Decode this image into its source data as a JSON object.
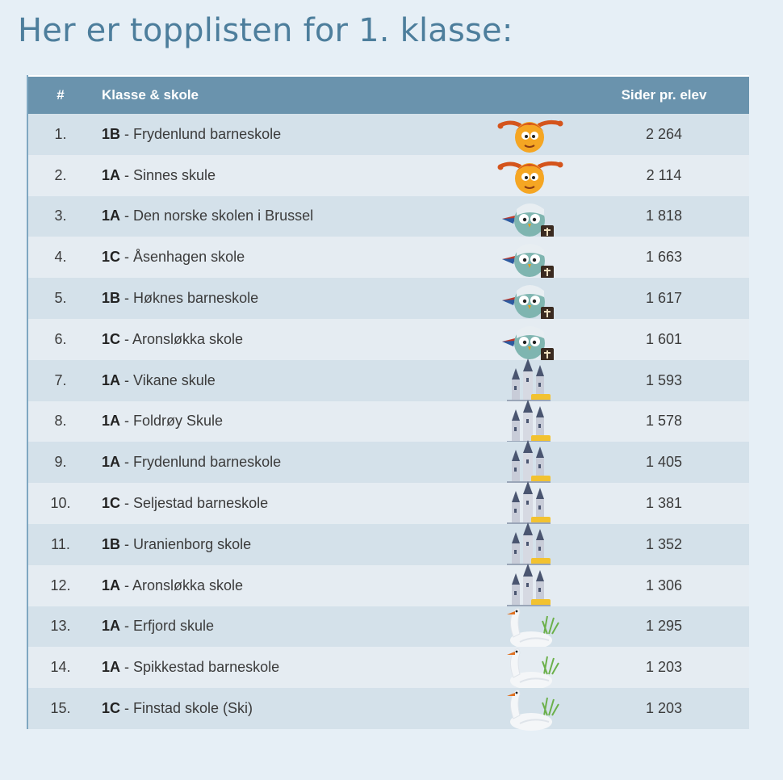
{
  "heading": "Her er topplisten for 1. klasse:",
  "table": {
    "headers": {
      "rank": "#",
      "class_school": "Klasse & skole",
      "pages": "Sider pr. elev"
    },
    "rows": [
      {
        "rank": "1.",
        "class": "1B",
        "school": " - Frydenlund barneskole",
        "badge": "pippi-badge-icon",
        "pages": "2 264"
      },
      {
        "rank": "2.",
        "class": "1A",
        "school": " - Sinnes skule",
        "badge": "pippi-badge-icon",
        "pages": "2 114"
      },
      {
        "rank": "3.",
        "class": "1A",
        "school": " - Den norske skolen i Brussel",
        "badge": "owl-judge-badge-icon",
        "pages": "1 818"
      },
      {
        "rank": "4.",
        "class": "1C",
        "school": " - Åsenhagen skole",
        "badge": "owl-judge-badge-icon",
        "pages": "1 663"
      },
      {
        "rank": "5.",
        "class": "1B",
        "school": " - Høknes barneskole",
        "badge": "owl-judge-badge-icon",
        "pages": "1 617"
      },
      {
        "rank": "6.",
        "class": "1C",
        "school": " - Aronsløkka skole",
        "badge": "owl-judge-badge-icon",
        "pages": "1 601"
      },
      {
        "rank": "7.",
        "class": "1A",
        "school": " - Vikane skule",
        "badge": "castle-badge-icon",
        "pages": "1 593"
      },
      {
        "rank": "8.",
        "class": "1A",
        "school": " - Foldrøy Skule",
        "badge": "castle-badge-icon",
        "pages": "1 578"
      },
      {
        "rank": "9.",
        "class": "1A",
        "school": " - Frydenlund barneskole",
        "badge": "castle-badge-icon",
        "pages": "1 405"
      },
      {
        "rank": "10.",
        "class": "1C",
        "school": " - Seljestad barneskole",
        "badge": "castle-badge-icon",
        "pages": "1 381"
      },
      {
        "rank": "11.",
        "class": "1B",
        "school": " - Uranienborg skole",
        "badge": "castle-badge-icon",
        "pages": "1 352"
      },
      {
        "rank": "12.",
        "class": "1A",
        "school": " - Aronsløkka skole",
        "badge": "castle-badge-icon",
        "pages": "1 306"
      },
      {
        "rank": "13.",
        "class": "1A",
        "school": " - Erfjord skule",
        "badge": "swan-badge-icon",
        "pages": "1 295"
      },
      {
        "rank": "14.",
        "class": "1A",
        "school": " - Spikkestad barneskole",
        "badge": "swan-badge-icon",
        "pages": "1 203"
      },
      {
        "rank": "15.",
        "class": "1C",
        "school": " - Finstad skole (Ski)",
        "badge": "swan-badge-icon",
        "pages": "1 203"
      }
    ]
  },
  "colors": {
    "background": "#e6eff6",
    "heading": "#4d7e9c",
    "header_bar": "#6a93ad",
    "row_odd": "#d4e1ea",
    "row_even": "#e5ecf2"
  }
}
